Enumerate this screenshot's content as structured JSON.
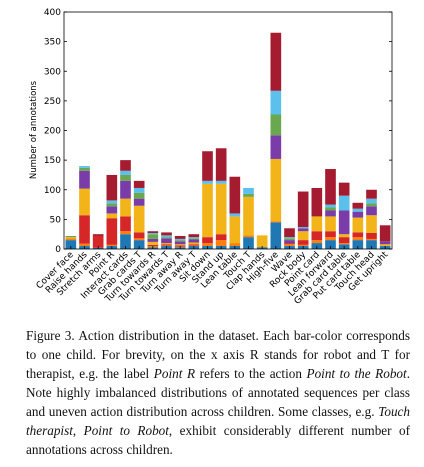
{
  "chart_data": {
    "type": "bar",
    "stacked": true,
    "ylabel": "Number of annotations",
    "ylim": [
      0,
      400
    ],
    "yticks": [
      0,
      50,
      100,
      150,
      200,
      250,
      300,
      350,
      400
    ],
    "grid": false,
    "legend": "none",
    "categories": [
      "Cover face",
      "Raise hands",
      "Stretch arms",
      "Point R",
      "Interact cards",
      "Grab cards T",
      "Turn towards R",
      "Turn towards T",
      "Turn away R",
      "Turn away T",
      "Sit down",
      "Stand up",
      "Lean table",
      "Touch T",
      "Clap hands",
      "High-five",
      "Wave",
      "Rock body",
      "Point card",
      "Lean forward",
      "Grab card table",
      "Put card table",
      "Touch head",
      "Get upright"
    ],
    "series": [
      {
        "color": "#1f77b4",
        "values": [
          15,
          5,
          2,
          5,
          25,
          15,
          3,
          5,
          3,
          5,
          5,
          5,
          5,
          20,
          3,
          45,
          5,
          5,
          10,
          15,
          8,
          15,
          15,
          5
        ]
      },
      {
        "color": "#ff7f0e",
        "values": [
          3,
          4,
          0,
          2,
          5,
          3,
          2,
          1,
          1,
          1,
          5,
          10,
          5,
          3,
          0,
          2,
          3,
          2,
          5,
          5,
          2,
          5,
          2,
          0
        ]
      },
      {
        "color": "#d62728",
        "values": [
          0,
          48,
          20,
          45,
          25,
          10,
          2,
          2,
          2,
          2,
          10,
          10,
          0,
          0,
          0,
          0,
          2,
          8,
          15,
          10,
          10,
          8,
          10,
          0
        ]
      },
      {
        "color": "#f2b418",
        "values": [
          2,
          45,
          0,
          8,
          30,
          45,
          5,
          2,
          2,
          3,
          90,
          85,
          45,
          65,
          20,
          105,
          0,
          15,
          25,
          25,
          5,
          25,
          30,
          3
        ]
      },
      {
        "color": "#7a3ca8",
        "values": [
          0,
          30,
          0,
          12,
          30,
          12,
          5,
          8,
          5,
          5,
          0,
          0,
          0,
          0,
          0,
          40,
          5,
          5,
          0,
          10,
          40,
          10,
          15,
          5
        ]
      },
      {
        "color": "#6aa84f",
        "values": [
          2,
          5,
          0,
          5,
          10,
          10,
          8,
          2,
          2,
          2,
          0,
          0,
          0,
          5,
          0,
          35,
          3,
          0,
          0,
          5,
          0,
          0,
          5,
          0
        ]
      },
      {
        "color": "#5bc0eb",
        "values": [
          0,
          3,
          0,
          5,
          7,
          8,
          2,
          3,
          2,
          2,
          5,
          5,
          5,
          10,
          0,
          40,
          2,
          2,
          0,
          5,
          25,
          5,
          8,
          0
        ]
      },
      {
        "color": "#a51c30",
        "values": [
          0,
          0,
          3,
          43,
          18,
          12,
          3,
          5,
          5,
          5,
          50,
          55,
          62,
          0,
          0,
          98,
          15,
          60,
          48,
          60,
          22,
          10,
          15,
          27
        ]
      }
    ]
  },
  "caption": {
    "p1": "Figure 3. Action distribution in the dataset. Each bar-color corresponds to one child. For brevity, on the x axis R stands for robot and T for therapist, e.g. the label ",
    "em1": "Point R",
    "p2": " refers to the action ",
    "em2": "Point to the Robot",
    "p3": ". Note highly imbalanced distributions of annotated sequences per class and uneven action distribution across children. Some classes, e.g. ",
    "em3": "Touch therapist",
    "p4": ", ",
    "em4": "Point to Robot",
    "p5": ", exhibit considerably different number of annotations across children."
  }
}
